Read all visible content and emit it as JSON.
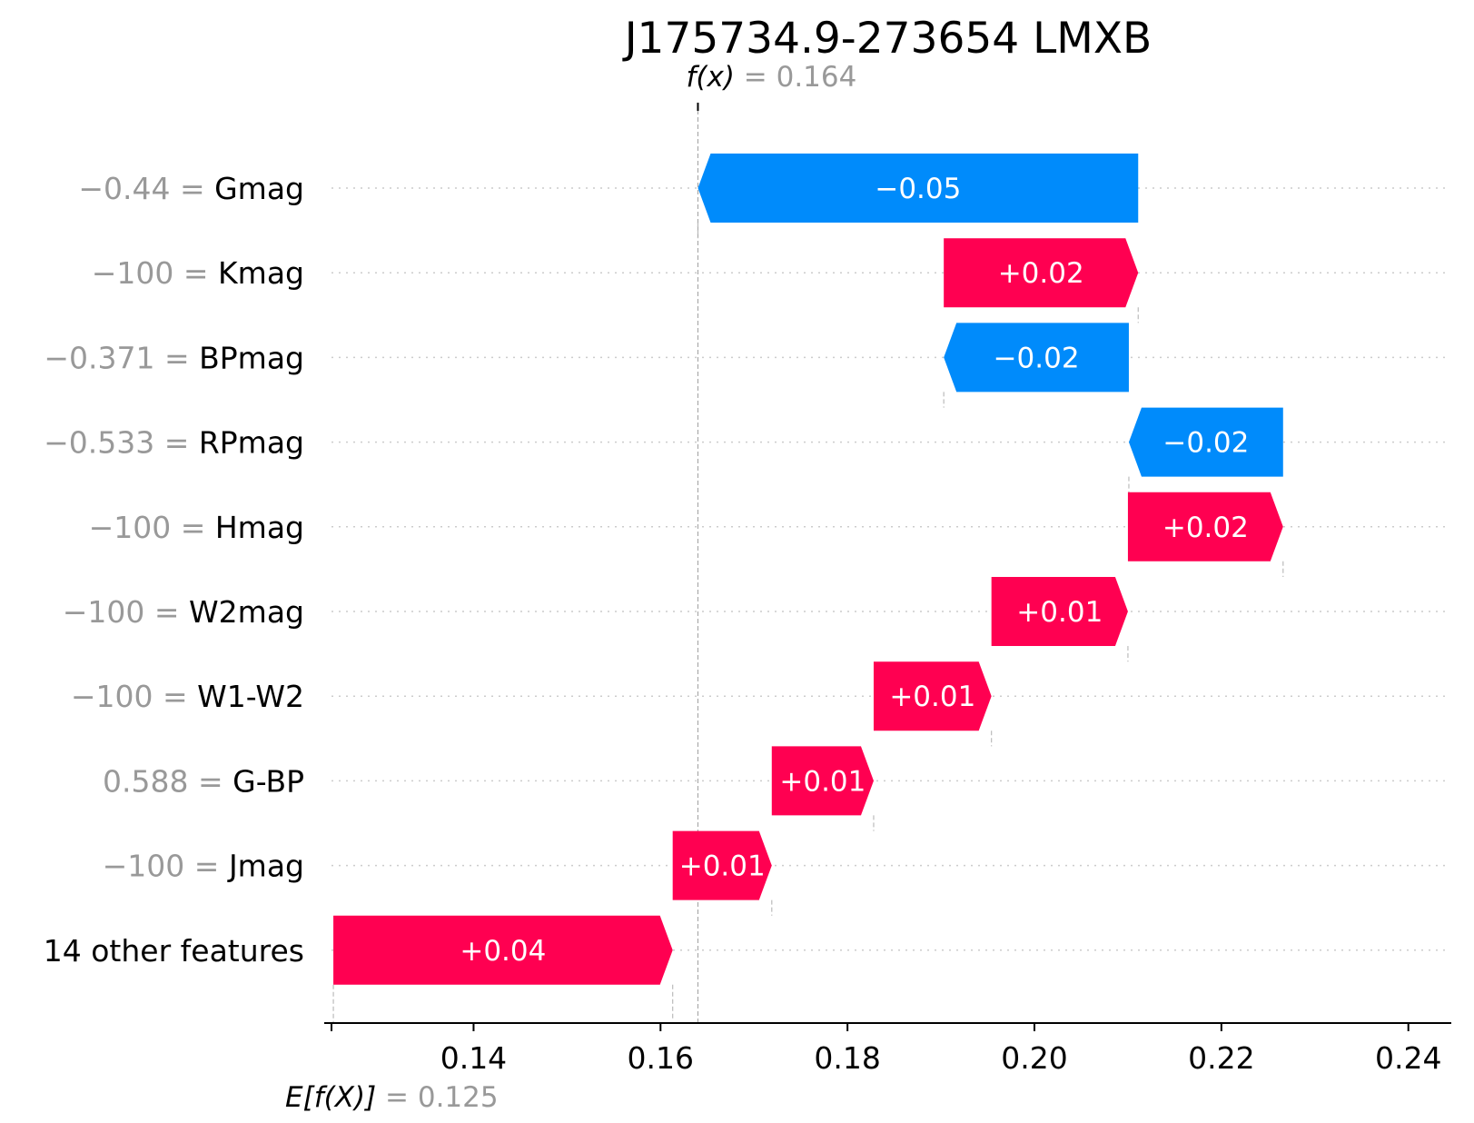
{
  "chart_data": {
    "type": "waterfall",
    "title": "J175734.9-273654 LMXB",
    "output": {
      "label": "f(x)",
      "value": 0.164,
      "value_text": "0.164"
    },
    "base": {
      "label": "E[f(X)]",
      "value": 0.125,
      "value_text": "0.125"
    },
    "xlim": [
      0.1248,
      0.2444
    ],
    "xticks": [
      0.14,
      0.16,
      0.18,
      0.2,
      0.22,
      0.24
    ],
    "xtick_labels": [
      "0.14",
      "0.16",
      "0.18",
      "0.20",
      "0.22",
      "0.24"
    ],
    "features": [
      {
        "value_text": "−0.44",
        "name": "Gmag",
        "start": 0.2111,
        "end": 0.164,
        "label": "−0.05"
      },
      {
        "value_text": "−100",
        "name": "Kmag",
        "start": 0.1903,
        "end": 0.2111,
        "label": "+0.02"
      },
      {
        "value_text": "−0.371",
        "name": "BPmag",
        "start": 0.2101,
        "end": 0.1903,
        "label": "−0.02"
      },
      {
        "value_text": "−0.533",
        "name": "RPmag",
        "start": 0.2266,
        "end": 0.2101,
        "label": "−0.02"
      },
      {
        "value_text": "−100",
        "name": "Hmag",
        "start": 0.21,
        "end": 0.2266,
        "label": "+0.02"
      },
      {
        "value_text": "−100",
        "name": "W2mag",
        "start": 0.1954,
        "end": 0.21,
        "label": "+0.01"
      },
      {
        "value_text": "−100",
        "name": "W1-W2",
        "start": 0.1828,
        "end": 0.1954,
        "label": "+0.01"
      },
      {
        "value_text": "0.588",
        "name": "G-BP",
        "start": 0.1719,
        "end": 0.1828,
        "label": "+0.01"
      },
      {
        "value_text": "−100",
        "name": "Jmag",
        "start": 0.1613,
        "end": 0.1719,
        "label": "+0.01"
      },
      {
        "value_text": "",
        "name": "14 other features",
        "start": 0.125,
        "end": 0.1613,
        "label": "+0.04"
      }
    ],
    "colors": {
      "positive": "#ff0051",
      "negative": "#008bfb"
    }
  }
}
